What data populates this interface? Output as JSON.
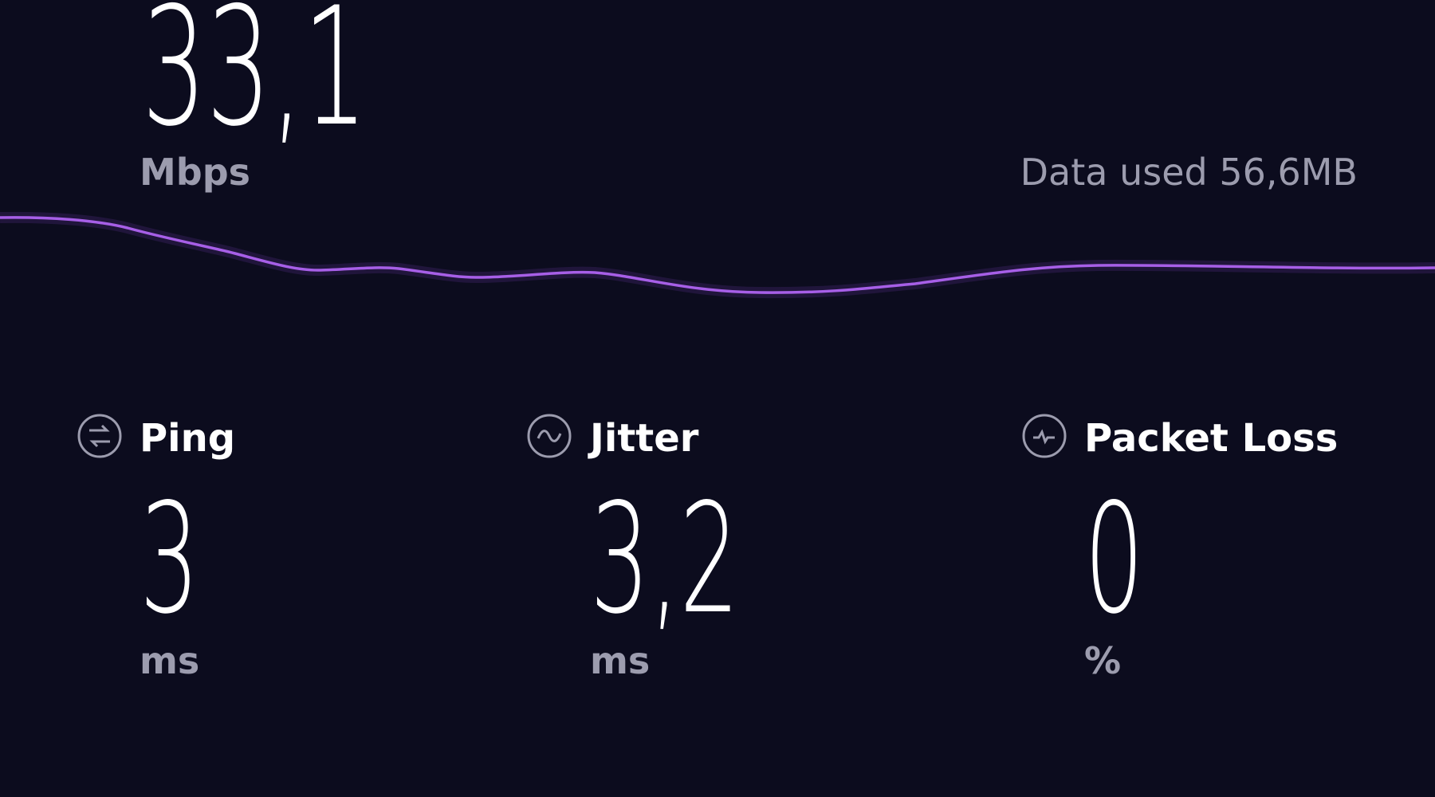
{
  "download": {
    "value": "33,1",
    "unit": "Mbps"
  },
  "data_used": "Data used 56,6MB",
  "metrics": [
    {
      "label": "Ping",
      "value": "3",
      "unit": "ms"
    },
    {
      "label": "Jitter",
      "value": "3,2",
      "unit": "ms"
    },
    {
      "label": "Packet Loss",
      "value": "0",
      "unit": "%"
    }
  ]
}
